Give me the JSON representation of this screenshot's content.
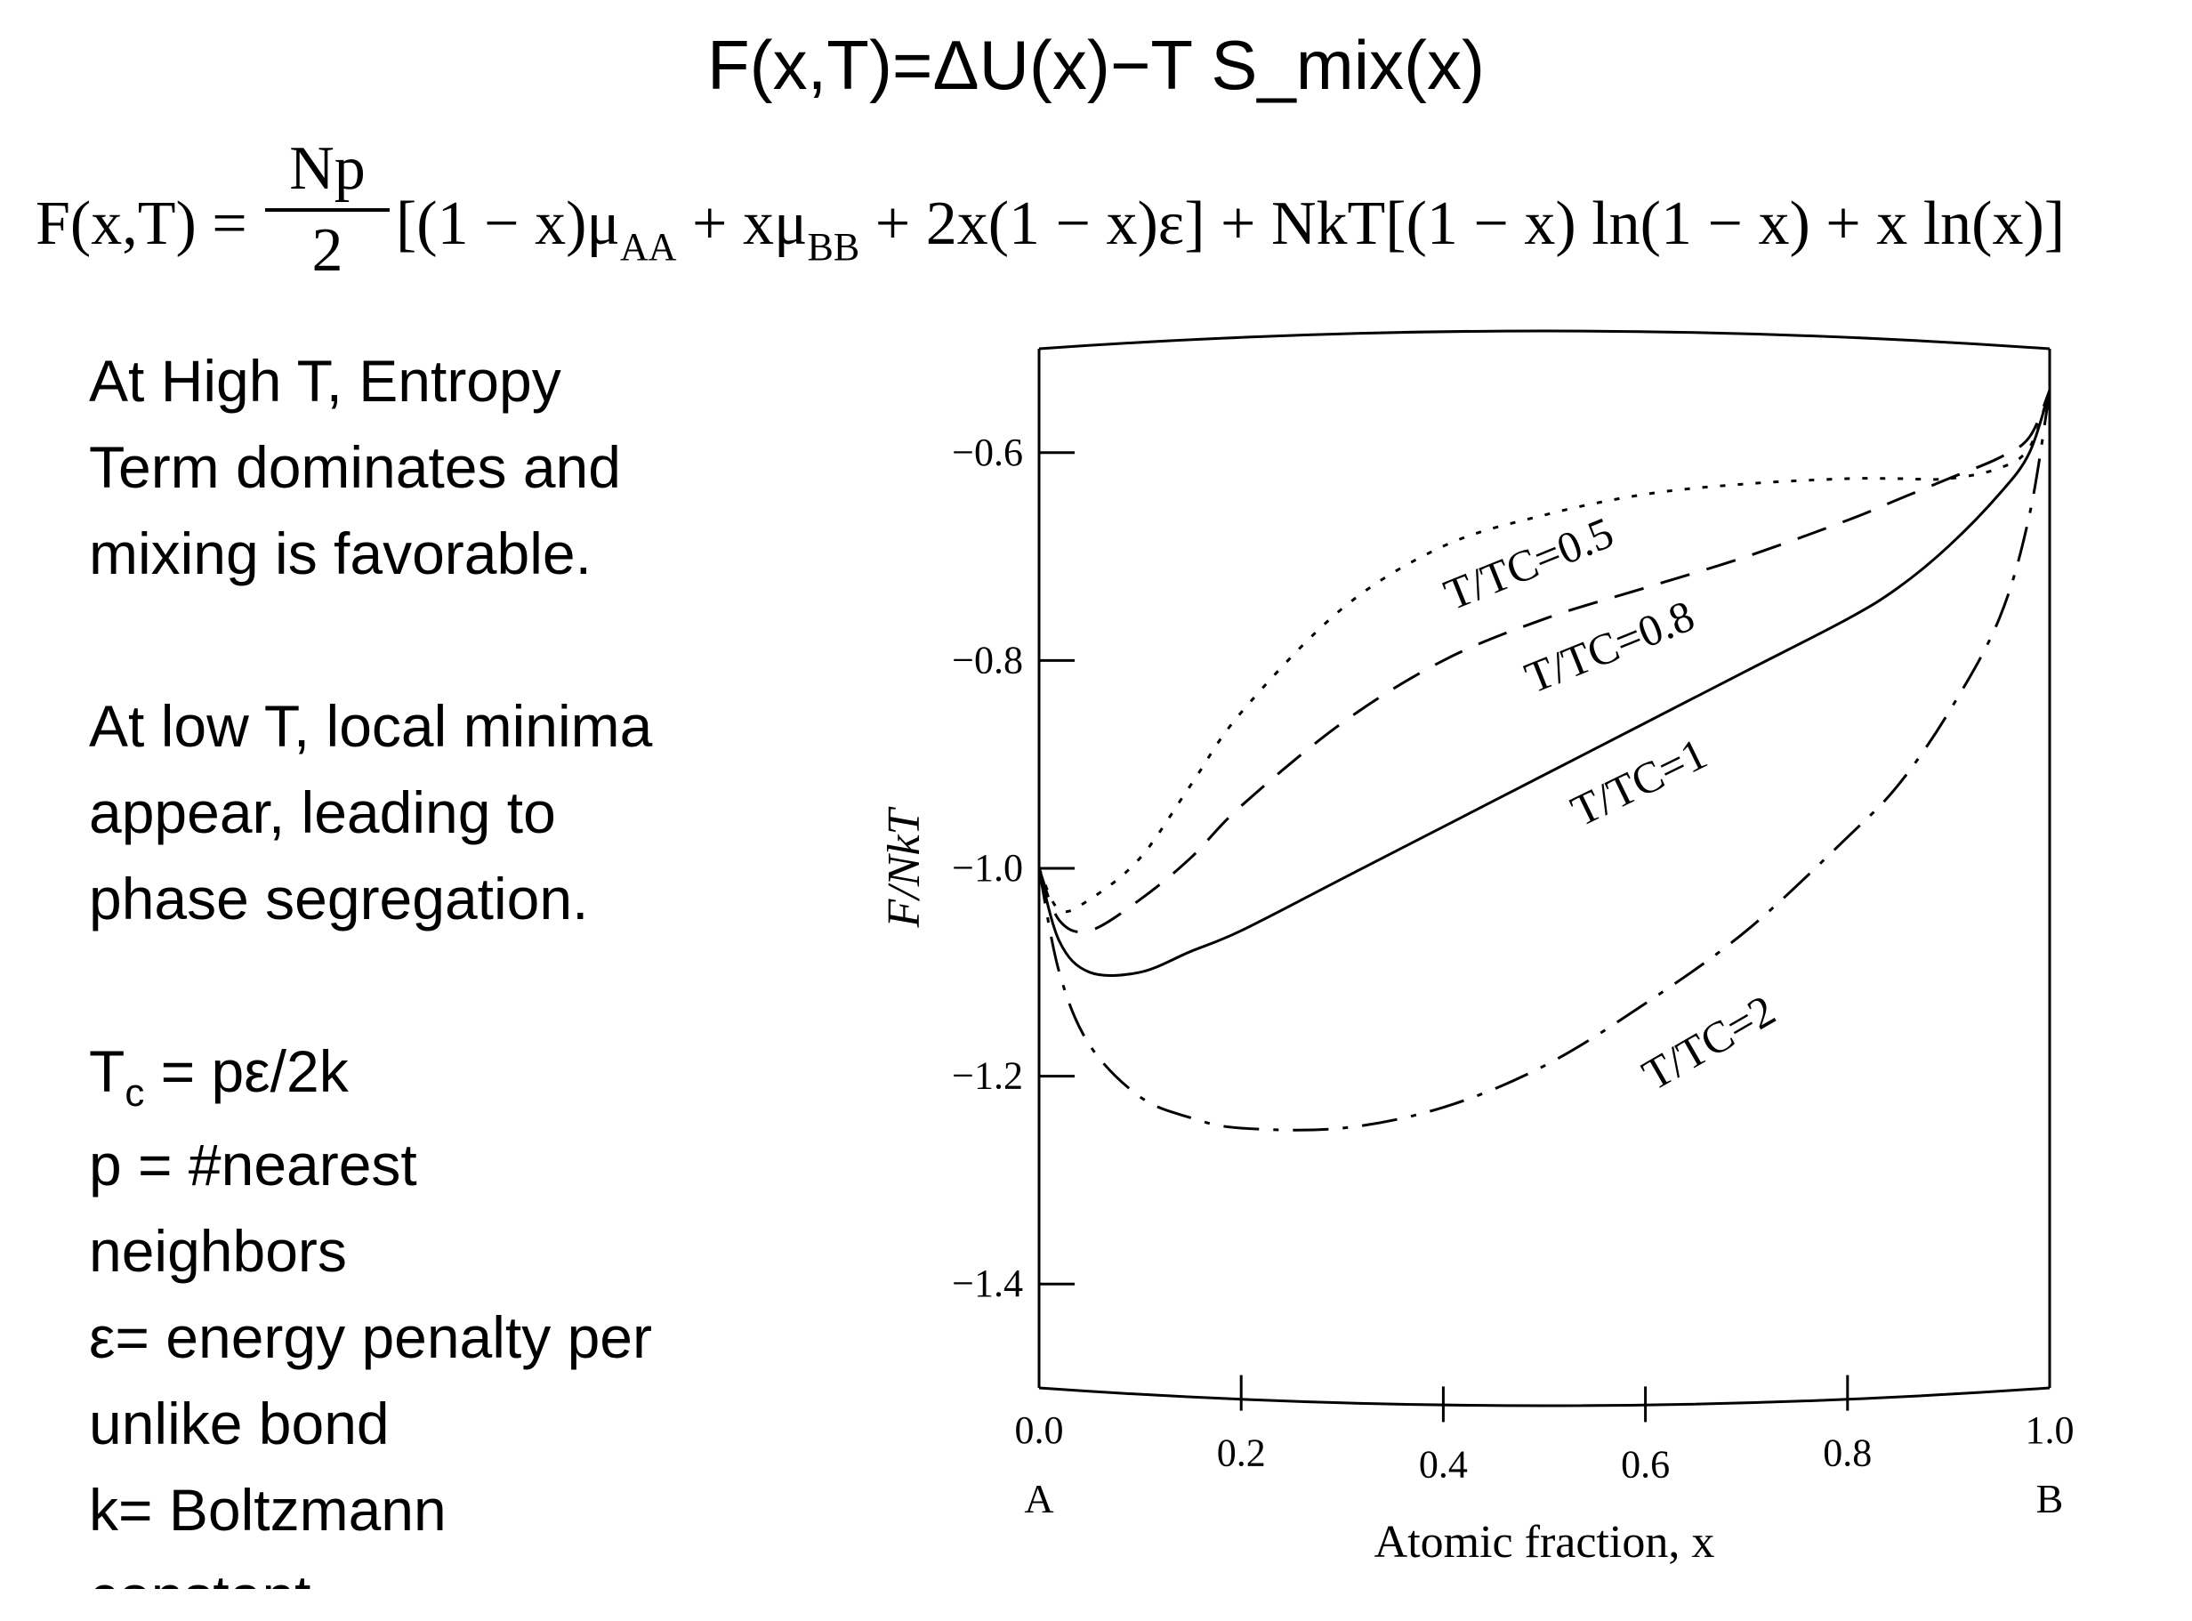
{
  "title": "F(x,T)=ΔU(x)−T S_mix(x)",
  "equation": {
    "lhs": "F(x,T) =",
    "frac_num": "Np",
    "frac_den": "2",
    "bracket1_a": "[(1 − x)μ",
    "sub_aa": "AA",
    "bracket1_b": " + xμ",
    "sub_bb": "BB",
    "bracket1_c": " + 2x(1 − x)ε] + NkT[(1 − x) ln(1 − x) + x ln(x)]"
  },
  "text": {
    "p1_l1": "At High T, Entropy",
    "p1_l2": "Term dominates and",
    "p1_l3": "mixing is favorable.",
    "p2_l1": "At low T, local minima",
    "p2_l2": "appear, leading to",
    "p2_l3": "phase segregation.",
    "tc_T": "T",
    "tc_sub": "c",
    "tc_rest": " = pε/2k",
    "p_line1": "p = #nearest",
    "p_line2": "neighbors",
    "eps_line1": "ε= energy penalty per",
    "eps_line2": "unlike bond",
    "k_line1": "k= Boltzmann",
    "k_line2": "constant"
  },
  "chart_data": {
    "type": "line",
    "title": "",
    "xlabel": "Atomic fraction, x",
    "ylabel": "F/NkT",
    "xlim": [
      0.0,
      1.0
    ],
    "ylim": [
      -1.5,
      -0.5
    ],
    "xticks": [
      "0.0",
      "0.2",
      "0.4",
      "0.6",
      "0.8",
      "1.0"
    ],
    "yticks": [
      "-0.6",
      "-0.8",
      "-1.0",
      "-1.2",
      "-1.4"
    ],
    "x_end_labels": {
      "left": "A",
      "right": "B"
    },
    "x": [
      0.0,
      0.02,
      0.05,
      0.1,
      0.15,
      0.2,
      0.3,
      0.4,
      0.5,
      0.6,
      0.7,
      0.8,
      0.85,
      0.9,
      0.95,
      0.98,
      1.0
    ],
    "series": [
      {
        "name": "T/TC=0.5",
        "style": "dotted",
        "label_text": "T/TC=0.5",
        "values": [
          -1.0,
          -1.04,
          -1.03,
          -0.99,
          -0.92,
          -0.85,
          -0.75,
          -0.69,
          -0.66,
          -0.64,
          -0.63,
          -0.625,
          -0.625,
          -0.625,
          -0.615,
          -0.595,
          -0.54
        ]
      },
      {
        "name": "T/TC=0.8",
        "style": "dashed",
        "label_text": "T/TC=0.8",
        "values": [
          -1.0,
          -1.05,
          -1.06,
          -1.03,
          -0.99,
          -0.94,
          -0.86,
          -0.8,
          -0.76,
          -0.73,
          -0.7,
          -0.665,
          -0.645,
          -0.625,
          -0.605,
          -0.585,
          -0.54
        ]
      },
      {
        "name": "T/TC=1",
        "style": "solid",
        "label_text": "T/TC=1",
        "values": [
          -1.0,
          -1.07,
          -1.1,
          -1.1,
          -1.08,
          -1.06,
          -1.01,
          -0.96,
          -0.91,
          -0.86,
          -0.81,
          -0.76,
          -0.73,
          -0.69,
          -0.64,
          -0.6,
          -0.54
        ]
      },
      {
        "name": "T/TC=2",
        "style": "dashdot",
        "label_text": "T/TC=2",
        "values": [
          -1.0,
          -1.1,
          -1.17,
          -1.22,
          -1.24,
          -1.25,
          -1.25,
          -1.23,
          -1.19,
          -1.13,
          -1.06,
          -0.97,
          -0.92,
          -0.85,
          -0.76,
          -0.66,
          -0.54
        ]
      }
    ]
  }
}
